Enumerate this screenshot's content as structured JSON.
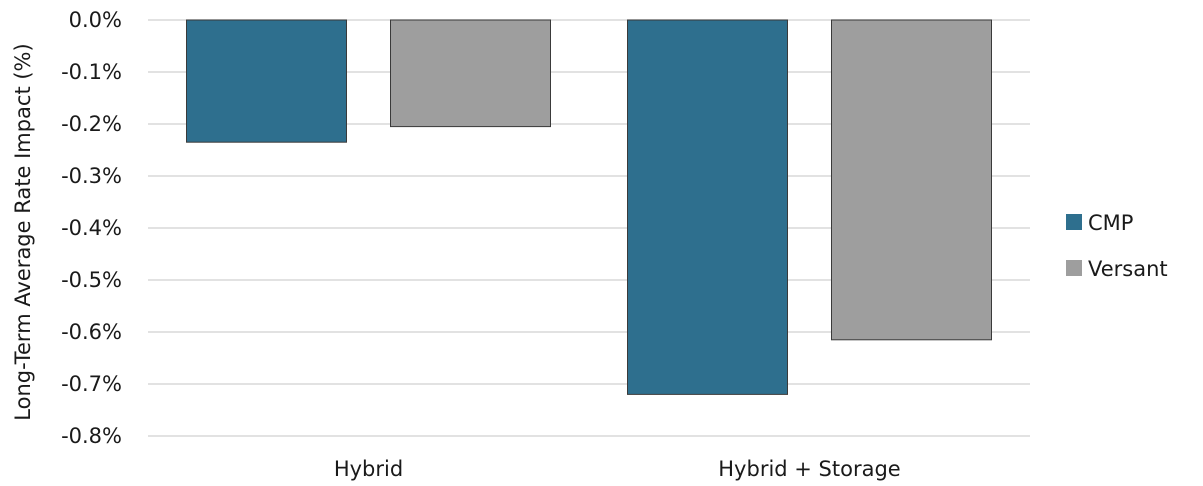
{
  "chart_data": {
    "type": "bar",
    "title": "",
    "xlabel": "",
    "ylabel": "Long-Term Average Rate Impact (%)",
    "categories": [
      "Hybrid",
      "Hybrid + Storage"
    ],
    "series": [
      {
        "name": "CMP",
        "color": "#2e6f8e",
        "values": [
          -0.235,
          -0.72
        ]
      },
      {
        "name": "Versant",
        "color": "#9e9e9e",
        "values": [
          -0.205,
          -0.615
        ]
      }
    ],
    "ylim": [
      -0.8,
      0.0
    ],
    "yticks": [
      0.0,
      -0.1,
      -0.2,
      -0.3,
      -0.4,
      -0.5,
      -0.6,
      -0.7,
      -0.8
    ],
    "ytick_labels": [
      "0.0%",
      "-0.1%",
      "-0.2%",
      "-0.3%",
      "-0.4%",
      "-0.5%",
      "-0.6%",
      "-0.7%",
      "-0.8%"
    ],
    "grid": true,
    "legend_position": "right"
  }
}
